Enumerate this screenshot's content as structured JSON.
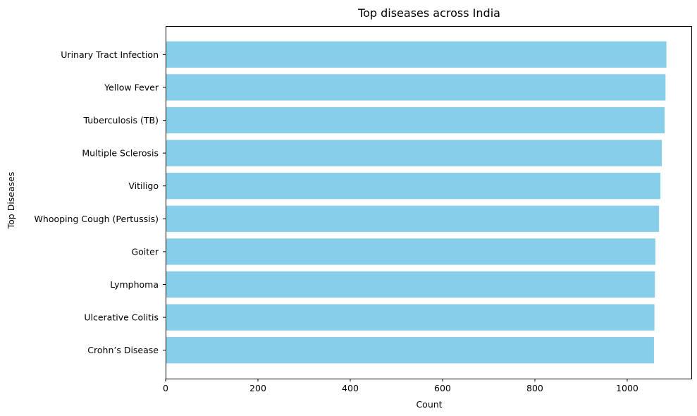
{
  "chart_data": {
    "type": "bar",
    "orientation": "horizontal",
    "title": "Top diseases across India",
    "xlabel": "Count",
    "ylabel": "Top Diseases",
    "categories": [
      "Urinary Tract Infection",
      "Yellow Fever",
      "Tuberculosis (TB)",
      "Multiple Sclerosis",
      "Vitiligo",
      "Whooping Cough (Pertussis)",
      "Goiter",
      "Lymphoma",
      "Ulcerative Colitis",
      "Crohn’s Disease"
    ],
    "values": [
      1085,
      1083,
      1081,
      1075,
      1072,
      1069,
      1061,
      1060,
      1059,
      1058
    ],
    "xlim": [
      0,
      1139
    ],
    "xticks": [
      0,
      200,
      400,
      600,
      800,
      1000
    ],
    "grid": false,
    "bar_color": "#87ceeb"
  }
}
